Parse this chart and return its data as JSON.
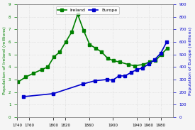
{
  "ireland_years": [
    1741,
    1754,
    1767,
    1781,
    1791,
    1801,
    1811,
    1821,
    1831,
    1841,
    1851,
    1861,
    1871,
    1881,
    1891,
    1901,
    1911,
    1926,
    1936,
    1951,
    1961,
    1971,
    1981,
    1991
  ],
  "ireland_pop": [
    2.8,
    3.2,
    3.5,
    3.8,
    4.0,
    4.8,
    5.2,
    6.0,
    6.8,
    8.2,
    6.9,
    5.8,
    5.5,
    5.2,
    4.7,
    4.5,
    4.4,
    4.2,
    4.1,
    4.2,
    4.4,
    4.5,
    5.0,
    5.5
  ],
  "europe_years": [
    1750,
    1800,
    1850,
    1870,
    1890,
    1900,
    1910,
    1920,
    1930,
    1940,
    1950,
    1960,
    1970,
    1980,
    1990
  ],
  "europe_pop": [
    163,
    187,
    265,
    290,
    300,
    295,
    329,
    329,
    355,
    380,
    392,
    425,
    460,
    510,
    600
  ],
  "ireland_color": "#008000",
  "europe_color": "#0000cc",
  "left_ylabel": "Population of Ireland (millions)",
  "right_ylabel": "Population of Europe (millions)",
  "left_ylim": [
    0,
    9
  ],
  "right_ylim": [
    0,
    900
  ],
  "xlim": [
    1740,
    2000
  ],
  "xticks": [
    1740,
    1760,
    1800,
    1820,
    1860,
    1900,
    1940,
    1960,
    1980
  ],
  "left_yticks": [
    0,
    1,
    2,
    3,
    4,
    5,
    6,
    7,
    8,
    9
  ],
  "right_yticks": [
    0,
    100,
    200,
    300,
    400,
    500,
    600,
    700,
    800,
    900
  ],
  "bg_color": "#f5f5f5",
  "ireland_label": "Ireland",
  "europe_label": "Europe"
}
